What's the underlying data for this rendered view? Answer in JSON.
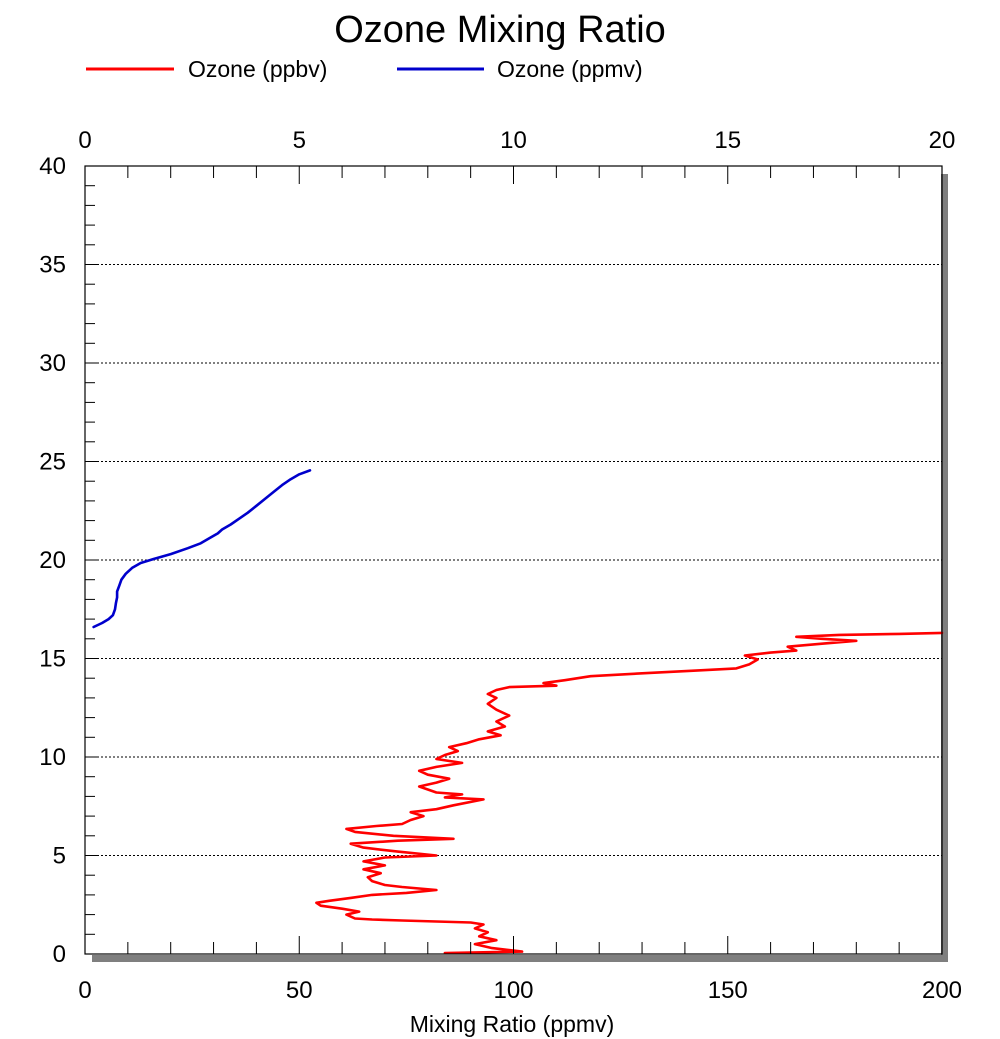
{
  "chart_data": {
    "type": "line",
    "title": "Ozone Mixing Ratio",
    "xlabel": "Mixing Ratio (ppmv)",
    "ylabel": "",
    "bottom_axis": {
      "range": [
        0,
        200
      ],
      "ticks": [
        0,
        50,
        100,
        150,
        200
      ],
      "tick_labels": [
        "0",
        "50",
        "100",
        "150",
        "200"
      ]
    },
    "top_axis": {
      "range": [
        0,
        20
      ],
      "ticks": [
        0,
        5,
        10,
        15,
        20
      ],
      "tick_labels": [
        "0",
        "5",
        "10",
        "15",
        "20"
      ]
    },
    "y_axis": {
      "range": [
        0,
        40
      ],
      "ticks": [
        0,
        5,
        10,
        15,
        20,
        25,
        30,
        35,
        40
      ],
      "tick_labels": [
        "0",
        "5",
        "10",
        "15",
        "20",
        "25",
        "30",
        "35",
        "40"
      ]
    },
    "grid": "horizontal dotted",
    "legend_position": "top-left",
    "colors": {
      "ppbv": "#ff0000",
      "ppmv": "#0000cc"
    },
    "series": [
      {
        "name": "Ozone (ppbv)",
        "axis": "bottom",
        "color": "#ff0000",
        "points": [
          [
            84,
            0.05
          ],
          [
            102,
            0.12
          ],
          [
            95,
            0.3
          ],
          [
            91,
            0.5
          ],
          [
            96,
            0.7
          ],
          [
            92,
            0.9
          ],
          [
            94,
            1.1
          ],
          [
            91,
            1.3
          ],
          [
            93,
            1.5
          ],
          [
            90,
            1.6
          ],
          [
            82,
            1.65
          ],
          [
            74,
            1.7
          ],
          [
            67,
            1.75
          ],
          [
            63,
            1.8
          ],
          [
            61,
            2.0
          ],
          [
            64,
            2.15
          ],
          [
            60,
            2.3
          ],
          [
            55,
            2.45
          ],
          [
            54,
            2.6
          ],
          [
            57,
            2.7
          ],
          [
            62,
            2.85
          ],
          [
            67,
            3.0
          ],
          [
            75,
            3.1
          ],
          [
            82,
            3.25
          ],
          [
            74,
            3.4
          ],
          [
            70,
            3.5
          ],
          [
            67,
            3.7
          ],
          [
            66,
            3.9
          ],
          [
            69,
            4.1
          ],
          [
            65,
            4.3
          ],
          [
            70,
            4.5
          ],
          [
            65,
            4.7
          ],
          [
            70,
            4.9
          ],
          [
            82,
            5.0
          ],
          [
            73,
            5.2
          ],
          [
            65,
            5.4
          ],
          [
            62,
            5.6
          ],
          [
            73,
            5.75
          ],
          [
            86,
            5.85
          ],
          [
            72,
            6.0
          ],
          [
            63,
            6.2
          ],
          [
            61,
            6.35
          ],
          [
            68,
            6.5
          ],
          [
            74,
            6.6
          ],
          [
            76,
            6.8
          ],
          [
            79,
            7.0
          ],
          [
            76,
            7.2
          ],
          [
            82,
            7.35
          ],
          [
            86,
            7.55
          ],
          [
            93,
            7.85
          ],
          [
            84,
            7.95
          ],
          [
            88,
            8.1
          ],
          [
            82,
            8.2
          ],
          [
            80,
            8.35
          ],
          [
            78,
            8.5
          ],
          [
            82,
            8.7
          ],
          [
            85,
            8.9
          ],
          [
            80,
            9.1
          ],
          [
            78,
            9.3
          ],
          [
            82,
            9.5
          ],
          [
            88,
            9.7
          ],
          [
            82,
            9.9
          ],
          [
            84,
            10.1
          ],
          [
            87,
            10.3
          ],
          [
            85,
            10.5
          ],
          [
            89,
            10.7
          ],
          [
            92,
            10.9
          ],
          [
            97,
            11.1
          ],
          [
            94,
            11.3
          ],
          [
            98,
            11.55
          ],
          [
            96,
            11.8
          ],
          [
            99,
            12.1
          ],
          [
            96,
            12.4
          ],
          [
            94,
            12.7
          ],
          [
            96,
            13.0
          ],
          [
            94,
            13.2
          ],
          [
            96,
            13.4
          ],
          [
            99,
            13.55
          ],
          [
            110,
            13.62
          ],
          [
            107,
            13.75
          ],
          [
            112,
            13.9
          ],
          [
            118,
            14.1
          ],
          [
            130,
            14.25
          ],
          [
            142,
            14.38
          ],
          [
            152,
            14.5
          ],
          [
            155,
            14.7
          ],
          [
            157,
            14.95
          ],
          [
            154,
            15.15
          ],
          [
            160,
            15.3
          ],
          [
            166,
            15.4
          ],
          [
            164,
            15.6
          ],
          [
            172,
            15.75
          ],
          [
            180,
            15.9
          ],
          [
            172,
            16.0
          ],
          [
            166,
            16.1
          ],
          [
            176,
            16.2
          ],
          [
            190,
            16.25
          ],
          [
            200,
            16.3
          ]
        ]
      },
      {
        "name": "Ozone (ppmv)",
        "axis": "top",
        "color": "#0000cc",
        "points": [
          [
            0.2,
            16.6
          ],
          [
            0.4,
            16.8
          ],
          [
            0.55,
            17.0
          ],
          [
            0.65,
            17.2
          ],
          [
            0.7,
            17.5
          ],
          [
            0.72,
            17.8
          ],
          [
            0.75,
            18.1
          ],
          [
            0.75,
            18.4
          ],
          [
            0.8,
            18.7
          ],
          [
            0.85,
            19.0
          ],
          [
            0.95,
            19.3
          ],
          [
            1.1,
            19.6
          ],
          [
            1.3,
            19.85
          ],
          [
            1.6,
            20.05
          ],
          [
            2.0,
            20.3
          ],
          [
            2.4,
            20.6
          ],
          [
            2.7,
            20.85
          ],
          [
            2.9,
            21.1
          ],
          [
            3.1,
            21.35
          ],
          [
            3.2,
            21.55
          ],
          [
            3.4,
            21.8
          ],
          [
            3.6,
            22.1
          ],
          [
            3.8,
            22.4
          ],
          [
            4.0,
            22.75
          ],
          [
            4.2,
            23.1
          ],
          [
            4.4,
            23.45
          ],
          [
            4.6,
            23.8
          ],
          [
            4.8,
            24.1
          ],
          [
            5.0,
            24.35
          ],
          [
            5.25,
            24.55
          ]
        ]
      }
    ]
  }
}
